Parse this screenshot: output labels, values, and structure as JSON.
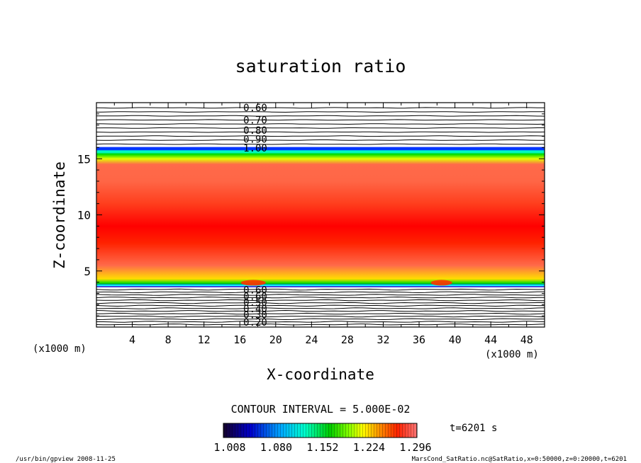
{
  "chart_data": {
    "type": "heatmap",
    "title": "saturation ratio",
    "xlabel": "X-coordinate",
    "ylabel": "Z-coordinate",
    "x_unit_left": "(x1000 m)",
    "x_unit_right": "(x1000 m)",
    "xlim": [
      0,
      50
    ],
    "ylim": [
      0,
      20
    ],
    "x_ticks": [
      4,
      8,
      12,
      16,
      20,
      24,
      28,
      32,
      36,
      40,
      44,
      48
    ],
    "y_ticks": [
      5,
      10,
      15
    ],
    "grid": false,
    "contour_levels_top": [
      "0.60",
      "0.70",
      "0.80",
      "0.90",
      "1.00"
    ],
    "contour_levels_bottom": [
      "0.60",
      "0.60",
      "0.50",
      "0.40",
      "0.30",
      "0.20"
    ],
    "colorbar": {
      "labels": [
        "1.008",
        "1.080",
        "1.152",
        "1.224",
        "1.296"
      ],
      "min": 1.008,
      "max": 1.296
    },
    "contour_interval": "CONTOUR INTERVAL = 5.000E-02",
    "time": "t=6201 s",
    "profile": [
      {
        "z": 3.7,
        "value": 1.0
      },
      {
        "z": 3.9,
        "value": 1.12
      },
      {
        "z": 4.3,
        "value": 1.2
      },
      {
        "z": 5.5,
        "value": 1.23
      },
      {
        "z": 7.5,
        "value": 1.27
      },
      {
        "z": 9.0,
        "value": 1.29
      },
      {
        "z": 11.0,
        "value": 1.26
      },
      {
        "z": 13.0,
        "value": 1.235
      },
      {
        "z": 14.5,
        "value": 1.23
      },
      {
        "z": 15.0,
        "value": 1.18
      },
      {
        "z": 15.4,
        "value": 1.12
      },
      {
        "z": 15.7,
        "value": 1.06
      },
      {
        "z": 16.0,
        "value": 1.0
      }
    ],
    "colors": {
      "low": "#1a0033",
      "blue": "#0000ff",
      "cyan": "#00ffff",
      "green": "#00dd00",
      "yellow": "#ffff00",
      "orange": "#ff9900",
      "red": "#ff0000",
      "pink": "#ff6666"
    }
  },
  "footer": {
    "left": "/usr/bin/gpview   2008-11-25",
    "right": "MarsCond_SatRatio.nc@SatRatio,x=0:50000,z=0:20000,t=6201"
  }
}
